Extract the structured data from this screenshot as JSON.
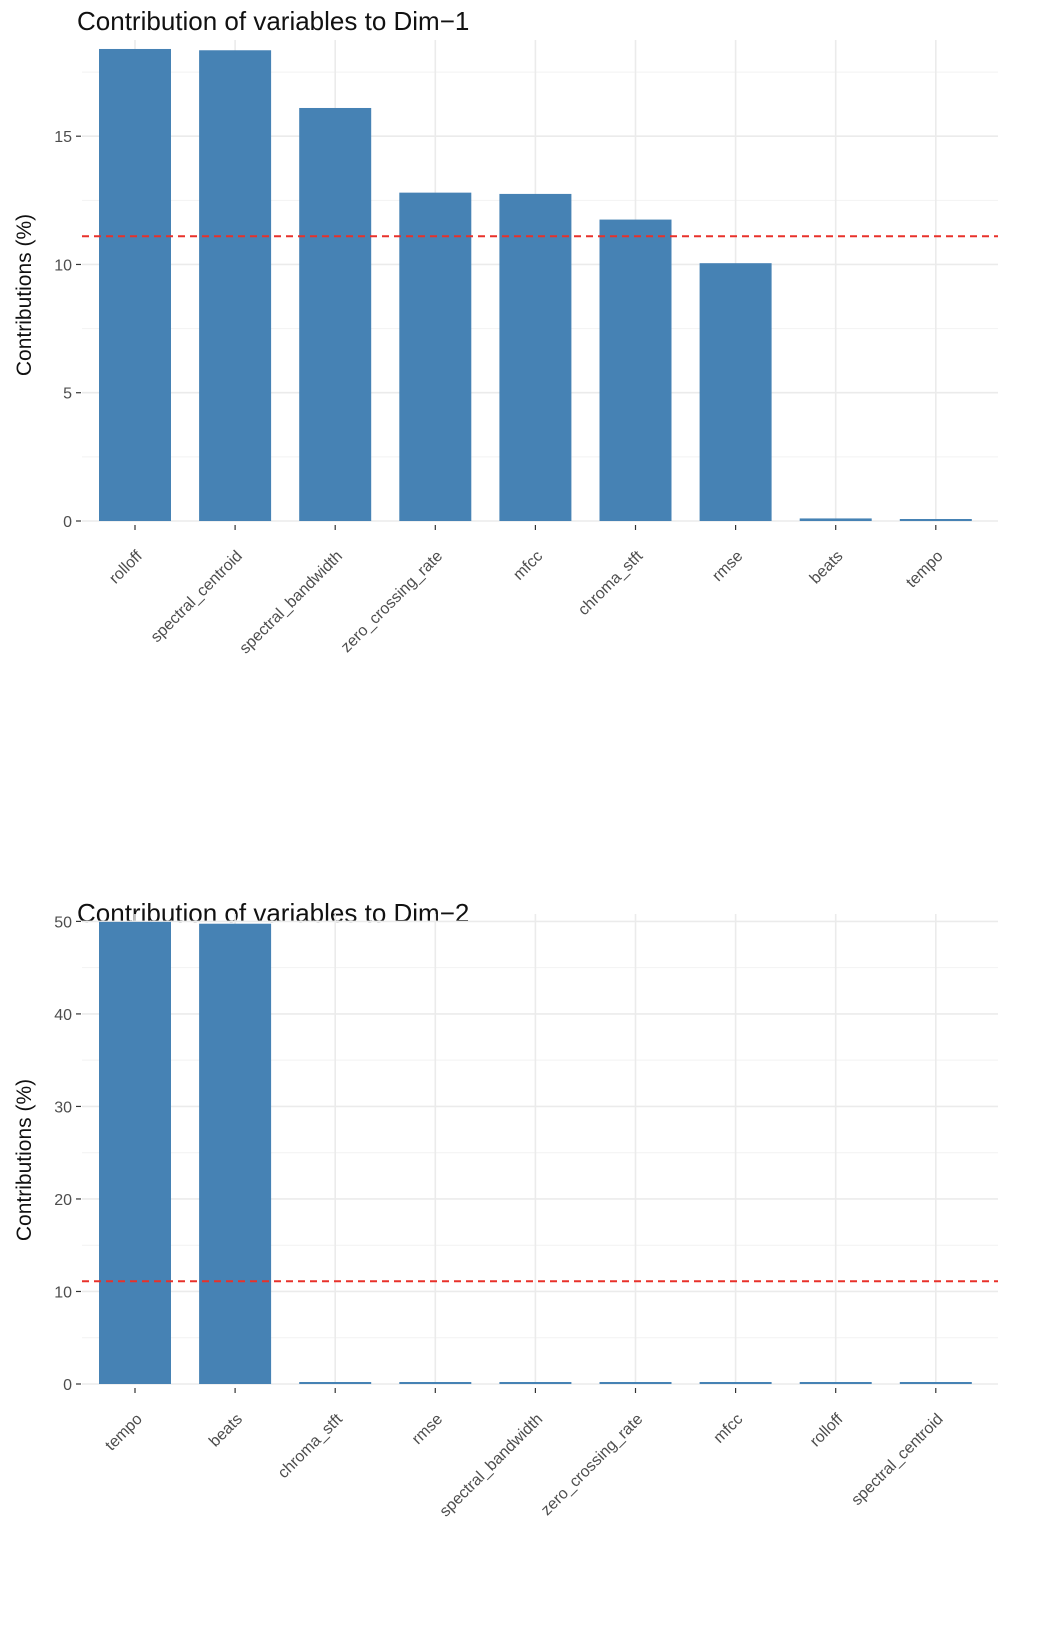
{
  "chart_data": [
    {
      "type": "bar",
      "title": "Contribution of variables to Dim−1",
      "xlabel": "",
      "ylabel": "Contributions (%)",
      "categories": [
        "rolloff",
        "spectral_centroid",
        "spectral_bandwidth",
        "zero_crossing_rate",
        "mfcc",
        "chroma_stft",
        "rmse",
        "beats",
        "tempo"
      ],
      "values": [
        18.4,
        18.35,
        16.1,
        12.8,
        12.75,
        11.75,
        10.05,
        0.1,
        0.03
      ],
      "ylim": [
        0,
        18.75
      ],
      "yticks": [
        0,
        5,
        10,
        15
      ],
      "reference_line": 11.1,
      "grid": true,
      "bar_color": "#4682b4",
      "reference_color": "#e8312a"
    },
    {
      "type": "bar",
      "title": "Contribution of variables to Dim−2",
      "xlabel": "",
      "ylabel": "Contributions (%)",
      "categories": [
        "tempo",
        "beats",
        "chroma_stft",
        "rmse",
        "spectral_bandwidth",
        "zero_crossing_rate",
        "mfcc",
        "rolloff",
        "spectral_centroid"
      ],
      "values": [
        49.95,
        49.75,
        0.2,
        0.18,
        0.12,
        0.11,
        0.1,
        0.1,
        0.08
      ],
      "ylim": [
        0,
        50.8
      ],
      "yticks": [
        0,
        10,
        20,
        30,
        40,
        50
      ],
      "reference_line": 11.1,
      "grid": true,
      "bar_color": "#4682b4",
      "reference_color": "#e8312a"
    }
  ]
}
